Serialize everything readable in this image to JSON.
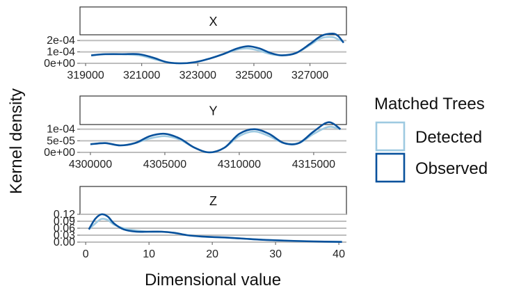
{
  "chart_data": {
    "type": "line",
    "ylabel": "Kernel density",
    "xlabel": "Dimensional value",
    "legend": {
      "title": "Matched Trees",
      "placement": "right",
      "entries": [
        {
          "name": "Detected",
          "color": "#9ecae1"
        },
        {
          "name": "Observed",
          "color": "#08519c"
        }
      ]
    },
    "grid": true,
    "panels": [
      {
        "strip": "X",
        "xlim": [
          318800,
          328300
        ],
        "ylim": [
          0,
          0.00025
        ],
        "x_ticks": [
          319000,
          321000,
          323000,
          325000,
          327000
        ],
        "x_tick_labels": [
          "319000",
          "321000",
          "323000",
          "325000",
          "327000"
        ],
        "y_ticks": [
          0,
          0.0001,
          0.0002
        ],
        "y_tick_labels": [
          "0e+00",
          "1e-04",
          "2e-04"
        ],
        "series": [
          {
            "name": "Detected",
            "x": [
              319200,
              319700,
              320300,
              320900,
              321400,
              321900,
              322400,
              322900,
              323400,
              323900,
              324400,
              324800,
              325200,
              325600,
              326000,
              326500,
              327000,
              327400,
              327800,
              328000,
              328200
            ],
            "y": [
              7e-05,
              8e-05,
              8e-05,
              7e-05,
              4e-05,
              1e-05,
              0.0,
              1e-05,
              4e-05,
              8e-05,
              0.00012,
              0.00013,
              0.00011,
              8e-05,
              7e-05,
              9e-05,
              0.00016,
              0.00022,
              0.00023,
              0.00021,
              0.00019
            ]
          },
          {
            "name": "Observed",
            "x": [
              319200,
              319700,
              320300,
              320900,
              321400,
              321900,
              322400,
              322900,
              323400,
              323900,
              324400,
              324800,
              325200,
              325600,
              326000,
              326500,
              327000,
              327400,
              327800,
              328000,
              328200
            ],
            "y": [
              7e-05,
              8e-05,
              8e-05,
              8e-05,
              5e-05,
              1e-05,
              0.0,
              1e-05,
              4e-05,
              8e-05,
              0.00013,
              0.00015,
              0.00013,
              9e-05,
              7e-05,
              9e-05,
              0.00017,
              0.00024,
              0.00026,
              0.00024,
              0.00018
            ]
          }
        ]
      },
      {
        "strip": "Y",
        "xlim": [
          4299300,
          4317200
        ],
        "ylim": [
          0,
          0.00012
        ],
        "x_ticks": [
          4300000,
          4305000,
          4310000,
          4315000
        ],
        "x_tick_labels": [
          "4300000",
          "4305000",
          "4310000",
          "4315000"
        ],
        "y_ticks": [
          0,
          5e-05,
          0.0001
        ],
        "y_tick_labels": [
          "0e+00",
          "5e-05",
          "1e-04"
        ],
        "series": [
          {
            "name": "Detected",
            "x": [
              4300000,
              4301000,
              4302000,
              4303000,
              4304000,
              4305000,
              4306000,
              4307000,
              4308000,
              4309000,
              4310000,
              4311000,
              4312000,
              4313000,
              4314000,
              4315000,
              4316000,
              4316800
            ],
            "y": [
              3.5e-05,
              4e-05,
              3e-05,
              4e-05,
              6e-05,
              7e-05,
              5.5e-05,
              2e-05,
              0.0,
              2e-05,
              7e-05,
              9e-05,
              7e-05,
              4e-05,
              4e-05,
              8e-05,
              0.00011,
              0.0001
            ]
          },
          {
            "name": "Observed",
            "x": [
              4300000,
              4301000,
              4302000,
              4303000,
              4304000,
              4305000,
              4306000,
              4307000,
              4308000,
              4309000,
              4310000,
              4311000,
              4312000,
              4313000,
              4314000,
              4315000,
              4316000,
              4316800
            ],
            "y": [
              3.5e-05,
              4e-05,
              3e-05,
              4e-05,
              7e-05,
              8e-05,
              6e-05,
              2e-05,
              0.0,
              2e-05,
              8e-05,
              0.0001,
              8e-05,
              4e-05,
              4e-05,
              9e-05,
              0.00013,
              0.0001
            ]
          }
        ]
      },
      {
        "strip": "Z",
        "xlim": [
          -0.9,
          41.2
        ],
        "ylim": [
          0,
          0.12
        ],
        "x_ticks": [
          0,
          10,
          20,
          30,
          40
        ],
        "x_tick_labels": [
          "0",
          "10",
          "20",
          "30",
          "40"
        ],
        "y_ticks": [
          0,
          0.03,
          0.06,
          0.09,
          0.12
        ],
        "y_tick_labels": [
          "0.00",
          "0.03",
          "0.06",
          "0.09",
          "0.12"
        ],
        "series": [
          {
            "name": "Detected",
            "x": [
              0.5,
              1.5,
              2.5,
              3.5,
              4.5,
              6,
              8,
              10,
              12,
              14,
              16,
              18,
              20,
              22,
              25,
              28,
              32,
              36,
              40.5
            ],
            "y": [
              0.055,
              0.08,
              0.1,
              0.095,
              0.075,
              0.06,
              0.05,
              0.045,
              0.045,
              0.04,
              0.03,
              0.025,
              0.022,
              0.02,
              0.015,
              0.01,
              0.006,
              0.003,
              0.001
            ]
          },
          {
            "name": "Observed",
            "x": [
              0.5,
              1.5,
              2.5,
              3.5,
              4.5,
              6,
              8,
              10,
              12,
              14,
              16,
              18,
              20,
              22,
              25,
              28,
              32,
              36,
              40.5
            ],
            "y": [
              0.055,
              0.1,
              0.12,
              0.11,
              0.08,
              0.055,
              0.045,
              0.045,
              0.045,
              0.04,
              0.03,
              0.025,
              0.022,
              0.02,
              0.015,
              0.01,
              0.006,
              0.003,
              0.001
            ]
          }
        ]
      }
    ]
  }
}
